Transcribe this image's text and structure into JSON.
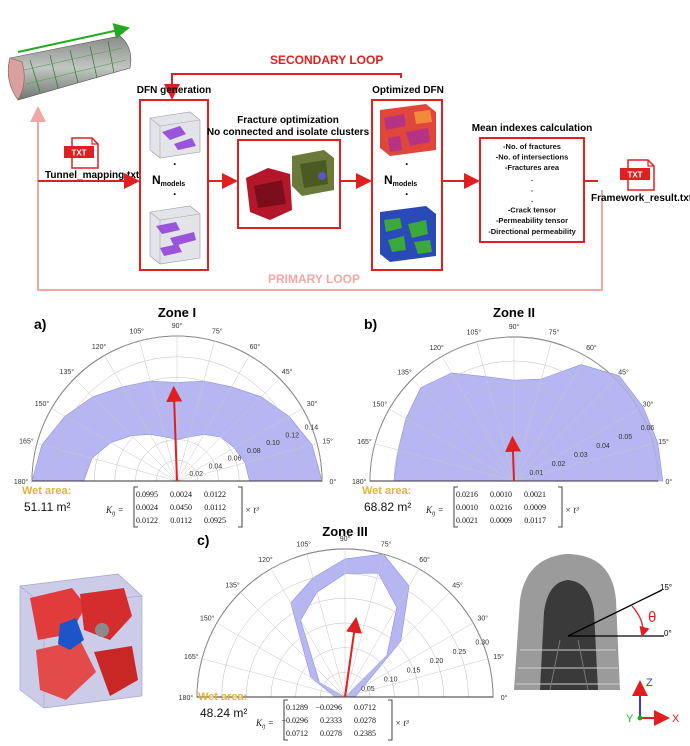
{
  "workflow": {
    "secondary_loop": "SECONDARY LOOP",
    "primary_loop": "PRIMARY LOOP",
    "input_badge": "TXT",
    "input_file": "Tunnel_mapping.txt",
    "output_badge": "TXT",
    "output_file": "Framework_result.txt",
    "dfn_generation": "DFN generation",
    "fracture_optimization_1": "Fracture optimization",
    "fracture_optimization_2": "No connected and isolate clusters",
    "optimized_dfn": "Optimized DFN",
    "mean_indexes": "Mean indexes calculation",
    "n_models_main": "N",
    "n_models_sub": "models",
    "dot": "·",
    "index_list": [
      "-No. of fractures",
      "-No. of intersections",
      "-Fractures area",
      ".",
      ".",
      ".",
      "-Crack tensor",
      "-Permeability tensor",
      "-Directional permeability"
    ]
  },
  "angles": [
    "0°",
    "15°",
    "30°",
    "45°",
    "60°",
    "75°",
    "90°",
    "105°",
    "120°",
    "135°",
    "150°",
    "165°",
    "180°"
  ],
  "wet_area_label": "Wet area:",
  "k_symbol": "K",
  "k_sub": "ij",
  "k_factor": "× t³",
  "panels": [
    {
      "panel": "a)",
      "zone": "Zone I",
      "wet_area": "51.11 m²",
      "radial_ticks": [
        "0.02",
        "0.04",
        "0.06",
        "0.08",
        "0.10",
        "0.12",
        "0.14"
      ],
      "matrix": [
        [
          "0.0995",
          "0.0024",
          "0.0122"
        ],
        [
          "0.0024",
          "0.0450",
          "0.0112"
        ],
        [
          "0.0122",
          "0.0112",
          "0.0925"
        ]
      ]
    },
    {
      "panel": "b)",
      "zone": "Zone II",
      "wet_area": "68.82 m²",
      "radial_ticks": [
        "0.01",
        "0.02",
        "0.03",
        "0.04",
        "0.05",
        "0.06"
      ],
      "matrix": [
        [
          "0.0216",
          "0.0010",
          "0.0021"
        ],
        [
          "0.0010",
          "0.0216",
          "0.0009"
        ],
        [
          "0.0021",
          "0.0009",
          "0.0117"
        ]
      ]
    },
    {
      "panel": "c)",
      "zone": "Zone III",
      "wet_area": "48.24 m²",
      "radial_ticks": [
        "0.05",
        "0.10",
        "0.15",
        "0.20",
        "0.25",
        "0.30"
      ],
      "matrix": [
        [
          "0.1289",
          "−0.0296",
          "0.0712"
        ],
        [
          "−0.0296",
          "0.2333",
          "0.0278"
        ],
        [
          "0.0712",
          "0.0278",
          "0.2385"
        ]
      ]
    }
  ],
  "tunnel_angles": {
    "upper": "15°",
    "lower": "0°",
    "theta": "θ"
  },
  "axes": {
    "z": "Z",
    "y": "Y",
    "x": "X"
  },
  "chart_data": [
    {
      "type": "polar-area",
      "title": "Zone I",
      "rlim": [
        0,
        0.14
      ],
      "theta_range_deg": [
        0,
        180
      ],
      "theta_deg": [
        0,
        15,
        30,
        45,
        60,
        75,
        90,
        105,
        120,
        135,
        150,
        165,
        180
      ],
      "outer": [
        0.14,
        0.135,
        0.125,
        0.115,
        0.105,
        0.1,
        0.095,
        0.1,
        0.105,
        0.115,
        0.125,
        0.135,
        0.14
      ],
      "inner": [
        0.07,
        0.068,
        0.064,
        0.06,
        0.052,
        0.044,
        0.04,
        0.044,
        0.052,
        0.062,
        0.074,
        0.085,
        0.09
      ],
      "mean_direction_deg": 92,
      "mean_magnitude": 0.09
    },
    {
      "type": "polar-area",
      "title": "Zone II",
      "rlim": [
        0,
        0.06
      ],
      "theta_range_deg": [
        0,
        180
      ],
      "theta_deg": [
        0,
        15,
        30,
        45,
        60,
        75,
        90,
        105,
        120,
        135,
        150,
        165,
        180
      ],
      "outer": [
        0.062,
        0.062,
        0.062,
        0.062,
        0.056,
        0.044,
        0.042,
        0.045,
        0.052,
        0.055,
        0.052,
        0.05,
        0.05
      ],
      "inner": [
        0,
        0,
        0,
        0,
        0,
        0,
        0,
        0,
        0,
        0,
        0,
        0,
        0
      ],
      "mean_direction_deg": 92,
      "mean_magnitude": 0.018
    },
    {
      "type": "polar-area",
      "title": "Zone III",
      "rlim": [
        0,
        0.3
      ],
      "theta_range_deg": [
        0,
        180
      ],
      "theta_deg": [
        0,
        45,
        60,
        75,
        90,
        105,
        120,
        150,
        180
      ],
      "outer": [
        0.02,
        0.16,
        0.26,
        0.3,
        0.28,
        0.25,
        0.22,
        0.08,
        0.02
      ],
      "inner": [
        0.0,
        0.12,
        0.21,
        0.26,
        0.25,
        0.22,
        0.18,
        0.06,
        0.0
      ],
      "mean_direction_deg": 82,
      "mean_magnitude": 0.16
    }
  ]
}
